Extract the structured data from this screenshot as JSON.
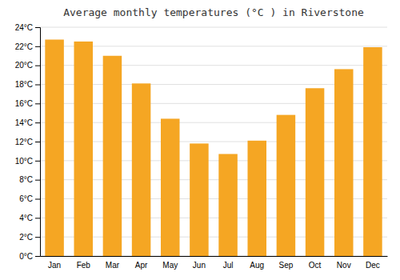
{
  "chart_data": {
    "type": "bar",
    "title": "Average monthly temperatures (°C ) in Riverstone",
    "categories": [
      "Jan",
      "Feb",
      "Mar",
      "Apr",
      "May",
      "Jun",
      "Jul",
      "Aug",
      "Sep",
      "Oct",
      "Nov",
      "Dec"
    ],
    "values": [
      22.7,
      22.5,
      21.0,
      18.1,
      14.4,
      11.8,
      10.7,
      12.1,
      14.8,
      17.6,
      19.6,
      21.9
    ],
    "color": "#F5A623",
    "ylim": [
      0,
      24
    ],
    "yticks": [
      {
        "value": 0,
        "label": "0°C"
      },
      {
        "value": 2,
        "label": "2°C"
      },
      {
        "value": 4,
        "label": "4°C"
      },
      {
        "value": 6,
        "label": "6°C"
      },
      {
        "value": 8,
        "label": "8°C"
      },
      {
        "value": 10,
        "label": "10°C"
      },
      {
        "value": 12,
        "label": "12°C"
      },
      {
        "value": 14,
        "label": "14°C"
      },
      {
        "value": 16,
        "label": "16°C"
      },
      {
        "value": 18,
        "label": "18°C"
      },
      {
        "value": 20,
        "label": "20°C"
      },
      {
        "value": 22,
        "label": "22°C"
      },
      {
        "value": 24,
        "label": "24°C"
      }
    ],
    "grid": true
  }
}
